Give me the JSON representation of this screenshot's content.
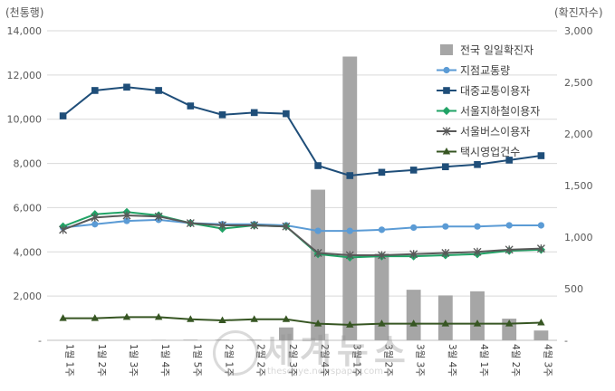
{
  "chart_data": {
    "type": "bar+line",
    "left_axis_unit": "(천통행)",
    "right_axis_unit": "(확진자수)",
    "categories": [
      "1월 1주",
      "1월 2주",
      "1월 3주",
      "1월 4주",
      "1월 5주",
      "2월 1주",
      "2월 2주",
      "2월 3주",
      "2월 4주",
      "3월 1주",
      "3월 2주",
      "3월 3주",
      "3월 4주",
      "4월 1주",
      "4월 2주",
      "4월 3주"
    ],
    "y_left": {
      "min": 0,
      "max": 14000,
      "ticks": [
        "-",
        "2,000",
        "4,000",
        "6,000",
        "8,000",
        "10,000",
        "12,000",
        "14,000"
      ],
      "values": [
        0,
        2000,
        4000,
        6000,
        8000,
        10000,
        12000,
        14000
      ]
    },
    "y_right": {
      "min": 0,
      "max": 3000,
      "ticks": [
        "-",
        "500",
        "1,000",
        "1,500",
        "2,000",
        "2,500",
        "3,000"
      ],
      "values": [
        0,
        500,
        1000,
        1500,
        2000,
        2500,
        3000
      ]
    },
    "bar_series": {
      "name": "전국 일일확진자",
      "axis": "right",
      "color": "#a6a6a6",
      "values": [
        0,
        0,
        0,
        4,
        6,
        6,
        6,
        125,
        1460,
        2750,
        840,
        490,
        435,
        475,
        210,
        95
      ]
    },
    "series": [
      {
        "name": "지점교통량",
        "marker": "circle",
        "color": "#5b9bd5",
        "values": [
          5100,
          5250,
          5400,
          5450,
          5300,
          5250,
          5250,
          5200,
          4950,
          4950,
          5000,
          5100,
          5150,
          5150,
          5200,
          5200
        ]
      },
      {
        "name": "대중교통이용자",
        "marker": "square",
        "color": "#1f4e79",
        "values": [
          10150,
          11300,
          11450,
          11300,
          10600,
          10200,
          10300,
          10250,
          7900,
          7450,
          7600,
          7700,
          7850,
          7950,
          8150,
          8350
        ]
      },
      {
        "name": "서울지하철이용자",
        "marker": "diamond",
        "color": "#21a366",
        "values": [
          5150,
          5700,
          5800,
          5650,
          5300,
          5050,
          5200,
          5150,
          3900,
          3750,
          3800,
          3800,
          3850,
          3900,
          4050,
          4100
        ]
      },
      {
        "name": "서울버스이용자",
        "marker": "star",
        "color": "#595959",
        "values": [
          5000,
          5550,
          5650,
          5600,
          5300,
          5200,
          5200,
          5150,
          3950,
          3850,
          3850,
          3900,
          3950,
          4000,
          4100,
          4150
        ]
      },
      {
        "name": "택시영업건수",
        "marker": "triangle",
        "color": "#375623",
        "values": [
          1000,
          1000,
          1050,
          1050,
          950,
          900,
          950,
          950,
          750,
          700,
          750,
          750,
          750,
          750,
          750,
          800
        ]
      }
    ],
    "legend_position": "right",
    "grid": true
  },
  "watermark": {
    "title": "세계뉴스",
    "subtitle": "thesegye.newspaper.com"
  }
}
